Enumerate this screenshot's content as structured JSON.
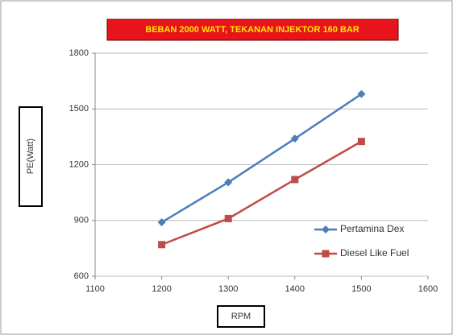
{
  "chart_data": {
    "type": "line",
    "title": "BEBAN 2000 WATT, TEKANAN INJEKTOR 160 BAR",
    "x_label": "RPM",
    "y_label": "PE(Watt)",
    "x": [
      1200,
      1300,
      1400,
      1500
    ],
    "series": [
      {
        "name": "Pertamina Dex",
        "color": "#4a7ebb",
        "marker": "diamond",
        "values": [
          890,
          1105,
          1340,
          1580
        ]
      },
      {
        "name": "Diesel Like Fuel",
        "color": "#be4b48",
        "marker": "square",
        "values": [
          770,
          910,
          1120,
          1325
        ]
      }
    ],
    "xlim": [
      1100,
      1600
    ],
    "xticks": [
      1100,
      1200,
      1300,
      1400,
      1500,
      1600
    ],
    "ylim": [
      600,
      1800
    ],
    "yticks": [
      600,
      900,
      1200,
      1500,
      1800
    ],
    "grid": true,
    "legend": "lower right"
  }
}
